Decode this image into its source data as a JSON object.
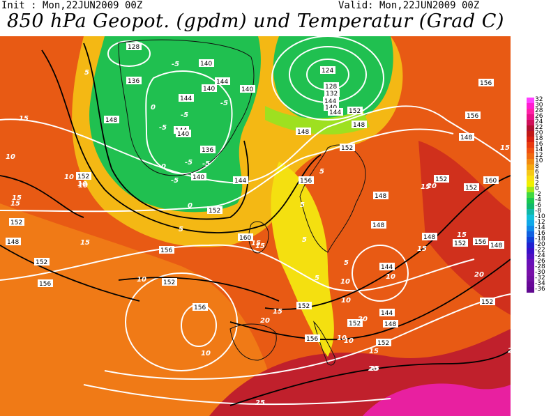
{
  "header": {
    "init_text": "Init : Mon,22JUN2009 00Z",
    "valid_text": "Valid: Mon,22JUN2009 00Z",
    "title": "850 hPa Geopot. (gpdm) und Temperatur (Grad C)"
  },
  "legend": {
    "levels": [
      {
        "value": "32",
        "color": "#ff40ff"
      },
      {
        "value": "30",
        "color": "#ff1cd0"
      },
      {
        "value": "28",
        "color": "#ff20a8"
      },
      {
        "value": "26",
        "color": "#e8108a"
      },
      {
        "value": "24",
        "color": "#d0105a"
      },
      {
        "value": "22",
        "color": "#b01030"
      },
      {
        "value": "20",
        "color": "#c01818"
      },
      {
        "value": "18",
        "color": "#d82010"
      },
      {
        "value": "16",
        "color": "#e83a10"
      },
      {
        "value": "14",
        "color": "#f05010"
      },
      {
        "value": "12",
        "color": "#f06a10"
      },
      {
        "value": "10",
        "color": "#f28a10"
      },
      {
        "value": "8",
        "color": "#f4a810"
      },
      {
        "value": "6",
        "color": "#f6c818"
      },
      {
        "value": "4",
        "color": "#f8e010"
      },
      {
        "value": "2",
        "color": "#f0f000"
      },
      {
        "value": "0",
        "color": "#a0e818"
      },
      {
        "value": "-2",
        "color": "#40d840"
      },
      {
        "value": "-4",
        "color": "#18c850"
      },
      {
        "value": "-6",
        "color": "#10b86c"
      },
      {
        "value": "-8",
        "color": "#10b8a8"
      },
      {
        "value": "-10",
        "color": "#10c0d8"
      },
      {
        "value": "-12",
        "color": "#10a8e8"
      },
      {
        "value": "-14",
        "color": "#1088e8"
      },
      {
        "value": "-16",
        "color": "#1060e0"
      },
      {
        "value": "-18",
        "color": "#1040d8"
      },
      {
        "value": "-20",
        "color": "#2020d0"
      },
      {
        "value": "-22",
        "color": "#3810c8"
      },
      {
        "value": "-24",
        "color": "#5010c0"
      },
      {
        "value": "-26",
        "color": "#6810b8"
      },
      {
        "value": "-28",
        "color": "#7010b0"
      },
      {
        "value": "-30",
        "color": "#7810a8"
      },
      {
        "value": "-32",
        "color": "#7010a0"
      },
      {
        "value": "-34",
        "color": "#680898"
      },
      {
        "value": "-36",
        "color": "#600890"
      }
    ]
  },
  "map": {
    "geopotential_labels": [
      "128",
      "140",
      "140",
      "144",
      "136",
      "140",
      "144",
      "144",
      "140",
      "136",
      "140",
      "144",
      "124",
      "128",
      "132",
      "136",
      "140",
      "144",
      "148",
      "152",
      "148",
      "152",
      "152",
      "160",
      "156",
      "152",
      "156",
      "152",
      "156",
      "152",
      "156",
      "152",
      "156",
      "152",
      "148",
      "152",
      "148",
      "148",
      "144",
      "148",
      "152",
      "152",
      "156",
      "152",
      "144",
      "148",
      "156",
      "148",
      "152",
      "156",
      "148",
      "160",
      "152",
      "144",
      "148"
    ],
    "temperature_labels": [
      "5",
      "-5",
      "-5",
      "-5",
      "-5",
      "-5",
      "0",
      "0",
      "-5",
      "-5",
      "5",
      "15",
      "10",
      "10",
      "10",
      "15",
      "5",
      "5",
      "0",
      "5",
      "10",
      "15",
      "20",
      "20",
      "15",
      "10",
      "10",
      "10",
      "15",
      "20",
      "15",
      "15",
      "15",
      "20",
      "25",
      "20",
      "25",
      "25",
      "10",
      "10",
      "15",
      "5",
      "5",
      "10",
      "10",
      "15",
      "15",
      "15"
    ]
  }
}
